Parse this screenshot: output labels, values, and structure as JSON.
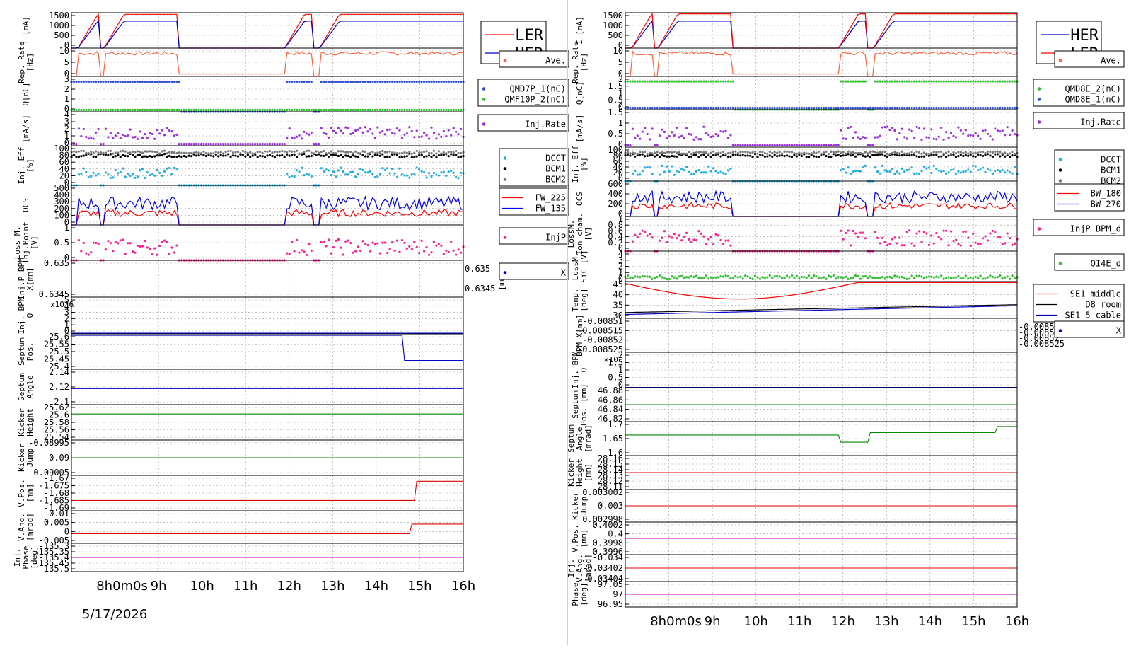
{
  "date_label": "5/17/2026",
  "x_ticks": [
    "8h",
    "9h",
    "10h",
    "11h",
    "12h",
    "13h",
    "14h",
    "15h",
    "16h"
  ],
  "x_start_label": "8h0m0s",
  "x_range": [
    7.0,
    16.0
  ],
  "chart_data": [
    {
      "type": "line",
      "title": "",
      "panels": [
        {
          "ylabel": "I [mA]",
          "ticks": [
            "1500",
            "1000",
            "500",
            "0"
          ],
          "ylim": [
            0,
            1550
          ],
          "legend": [
            {
              "name": "LER",
              "color": "#ff0000"
            },
            {
              "name": "HER",
              "color": "#0000cc"
            }
          ]
        },
        {
          "ylabel": "Rep. Rate [Hz]",
          "ticks": [
            "10",
            "5",
            "0"
          ],
          "ylim": [
            0,
            12
          ],
          "legend": [
            {
              "name": "Ave.",
              "color": "#ff6040"
            }
          ]
        },
        {
          "ylabel": "Q[nC]",
          "ticks": [
            "3",
            "2",
            "1",
            "0"
          ],
          "ylim": [
            0,
            3
          ],
          "legend": [
            {
              "name": "QMD7P_1(nC)",
              "color": "#3050d0"
            },
            {
              "name": "QMF10P_2(nC)",
              "color": "#30c030"
            }
          ]
        },
        {
          "ylabel": "[mA/s]",
          "ticks": [
            "4",
            "3",
            "2",
            "1",
            "0"
          ],
          "ylim": [
            0,
            4.5
          ],
          "legend": [
            {
              "name": "Inj.Rate",
              "color": "#9a30e0"
            }
          ]
        },
        {
          "ylabel": "Inj. Eff [%]",
          "ticks": [
            "100",
            "80",
            "60",
            "40",
            "20",
            "0"
          ],
          "ylim": [
            0,
            110
          ],
          "legend": [
            {
              "name": "DCCT",
              "color": "#20b0e0"
            },
            {
              "name": "BCM1",
              "color": "#000000"
            },
            {
              "name": "BCM2",
              "color": "#777777"
            }
          ]
        },
        {
          "ylabel": "OCS",
          "ticks": [
            "500",
            "400",
            "300",
            "200",
            "100",
            "0"
          ],
          "ylim": [
            0,
            550
          ],
          "legend": [
            {
              "name": "FW_225",
              "color": "#ff0000"
            },
            {
              "name": "FW_135",
              "color": "#0000ee"
            }
          ]
        },
        {
          "ylabel": "Loss M. Inj.Point [V]",
          "ticks": [
            "1",
            "0.5",
            "0"
          ],
          "ylim": [
            0,
            1.2
          ],
          "legend": [
            {
              "name": "InjP",
              "color": "#ff2090"
            }
          ]
        },
        {
          "ylabel": "Inj.P BPM X[mm]",
          "ticks": [
            "0.635",
            "0.6345"
          ],
          "right_ticks": [
            "0.635",
            "0.6345"
          ],
          "right_label": "Y[mm]",
          "ylim": [
            0.634,
            0.6355
          ],
          "legend": [
            {
              "name": "X",
              "color": "#0000cc"
            }
          ]
        },
        {
          "ylabel": "Inj. BPM Q",
          "multiplier": "x10^6",
          "ticks": [
            "5",
            "4",
            "3",
            "2",
            "1",
            "0"
          ],
          "ylim": [
            0,
            5
          ],
          "legend": []
        },
        {
          "ylabel": "Septum Pos.",
          "ticks": [
            "25.6",
            "25.55",
            "25.5",
            "25.45",
            "25.4"
          ],
          "ylim": [
            25.38,
            25.62
          ],
          "legend": []
        },
        {
          "ylabel": "Septum Angle",
          "ticks": [
            "2.14",
            "2.12",
            "2.1"
          ],
          "ylim": [
            2.095,
            2.15
          ],
          "legend": []
        },
        {
          "ylabel": "Kicker Height",
          "ticks": [
            "25.62",
            "25.6",
            "25.58",
            "25.56",
            "25.54"
          ],
          "ylim": [
            25.53,
            25.625
          ],
          "legend": []
        },
        {
          "ylabel": "Kicker Jump",
          "ticks": [
            "-0.08995",
            "-0.09",
            "-0.09005"
          ],
          "ylim": [
            -0.09008,
            -0.08992
          ],
          "legend": []
        },
        {
          "ylabel": "V.Pos. [mm]",
          "ticks": [
            "-1.67",
            "-1.675",
            "-1.68",
            "-1.685",
            "-1.69"
          ],
          "ylim": [
            -1.692,
            -1.668
          ],
          "legend": []
        },
        {
          "ylabel": "V.Ang. [mrad]",
          "ticks": [
            "0.01",
            "0.005",
            "0",
            "-0.005"
          ],
          "ylim": [
            -0.006,
            0.011
          ],
          "legend": []
        },
        {
          "ylabel": "Inj. Phase [deg]",
          "ticks": [
            "-135.3",
            "-135.35",
            "-135.4",
            "-135.45",
            "-135.5"
          ],
          "ylim": [
            -135.52,
            -135.28
          ],
          "legend": []
        }
      ]
    },
    {
      "type": "line",
      "title": "",
      "panels": [
        {
          "ylabel": "I [mA]",
          "ticks": [
            "1500",
            "1000",
            "500",
            "0"
          ],
          "ylim": [
            0,
            1550
          ],
          "legend": [
            {
              "name": "HER",
              "color": "#0000cc"
            },
            {
              "name": "LER",
              "color": "#ff0000"
            }
          ]
        },
        {
          "ylabel": "Rep. Rate [Hz]",
          "ticks": [
            "10",
            "5",
            "0"
          ],
          "ylim": [
            0,
            12
          ],
          "legend": [
            {
              "name": "Ave.",
              "color": "#ff6040"
            }
          ]
        },
        {
          "ylabel": "Q[nC]",
          "ticks": [
            "2",
            "1.5",
            "1",
            "0.5",
            "0"
          ],
          "ylim": [
            0,
            2
          ],
          "legend": [
            {
              "name": "QMD8E_2(nC)",
              "color": "#30c030"
            },
            {
              "name": "QMD8E_1(nC)",
              "color": "#3050d0"
            }
          ]
        },
        {
          "ylabel": "[mA/s]",
          "ticks": [
            "1.5",
            "1",
            "0.5",
            "0"
          ],
          "ylim": [
            0,
            1.7
          ],
          "legend": [
            {
              "name": "Inj.Rate",
              "color": "#9a30e0"
            }
          ]
        },
        {
          "ylabel": "Inj. Eff [%]",
          "ticks": [
            "100",
            "80",
            "60",
            "40",
            "20",
            "0"
          ],
          "ylim": [
            0,
            110
          ],
          "legend": [
            {
              "name": "DCCT",
              "color": "#20b0e0"
            },
            {
              "name": "BCM1",
              "color": "#000000"
            },
            {
              "name": "BCM2",
              "color": "#777777"
            }
          ]
        },
        {
          "ylabel": "OCS",
          "ticks": [
            "600",
            "400",
            "200",
            "0"
          ],
          "ylim": [
            0,
            700
          ],
          "legend": [
            {
              "name": "BW_180",
              "color": "#ff0000"
            },
            {
              "name": "BW_270",
              "color": "#0000ee"
            }
          ]
        },
        {
          "ylabel": "LossM. Ion cham. [V]",
          "ticks": [
            "1",
            "0.8",
            "0.6",
            "0.4",
            "0.2",
            "0"
          ],
          "ylim": [
            0,
            1.05
          ],
          "legend": [
            {
              "name": "InjP BPM_d",
              "color": "#ff2090"
            }
          ]
        },
        {
          "ylabel": "LossM. SiC [V]",
          "ticks": [
            "4",
            "3",
            "2",
            "1",
            "0"
          ],
          "ylim": [
            0,
            4.2
          ],
          "legend": [
            {
              "name": "QI4E_d",
              "color": "#30c030"
            }
          ]
        },
        {
          "ylabel": "Temp. [deg]",
          "ticks": [
            "45",
            "40",
            "35",
            "30"
          ],
          "ylim": [
            28,
            47
          ],
          "legend": [
            {
              "name": "SE1 middle",
              "color": "#ff0000"
            },
            {
              "name": "D8 room",
              "color": "#000000"
            },
            {
              "name": "SE1 5 cable",
              "color": "#0000cc"
            }
          ]
        },
        {
          "ylabel": "BPM X[mm]",
          "ticks": [
            "-0.00851",
            "-0.008515",
            "-0.00852",
            "-0.008525"
          ],
          "right_ticks": [
            "-0.00851",
            "-0.008515",
            "-0.00852",
            "-0.008525"
          ],
          "ylim": [
            -0.00853,
            -0.008505
          ],
          "legend": [
            {
              "name": "X",
              "color": "#0000cc"
            }
          ]
        },
        {
          "ylabel": "Inj. BPM Q",
          "multiplier": "x10",
          "ticks": [
            "2",
            "1.5",
            "1",
            "0.5",
            "0"
          ],
          "ylim": [
            0,
            2
          ],
          "legend": []
        },
        {
          "ylabel": "Septum Pos. [mm]",
          "ticks": [
            "46.88",
            "46.86",
            "46.84",
            "46.82"
          ],
          "ylim": [
            46.81,
            46.89
          ],
          "legend": []
        },
        {
          "ylabel": "Septum Angle [mrad]",
          "ticks": [
            "1.7",
            "1.65",
            "1.6"
          ],
          "ylim": [
            1.58,
            1.72
          ],
          "legend": []
        },
        {
          "ylabel": "Kicker Height [mm]",
          "ticks": [
            "28.16",
            "28.15",
            "28.14",
            "28.13",
            "28.12",
            "28.11"
          ],
          "ylim": [
            28.105,
            28.165
          ],
          "legend": []
        },
        {
          "ylabel": "Kicker Jump",
          "ticks": [
            "0.003002",
            "0.003",
            "0.002998"
          ],
          "ylim": [
            0.002997,
            0.003003
          ],
          "legend": []
        },
        {
          "ylabel": "V.Pos. [mm]",
          "ticks": [
            "0.4002",
            "0.4",
            "0.3998",
            "0.3996"
          ],
          "ylim": [
            0.3995,
            0.4003
          ],
          "legend": []
        },
        {
          "ylabel": "Inj. V.Ang. [mrad]",
          "ticks": [
            "-0.034",
            "-0.03402",
            "-0.03404"
          ],
          "ylim": [
            -0.03405,
            -0.03399
          ],
          "legend": []
        },
        {
          "ylabel": "Phase [deg]",
          "ticks": [
            "97.05",
            "97",
            "96.95"
          ],
          "ylim": [
            96.93,
            97.07
          ],
          "legend": []
        }
      ]
    }
  ]
}
